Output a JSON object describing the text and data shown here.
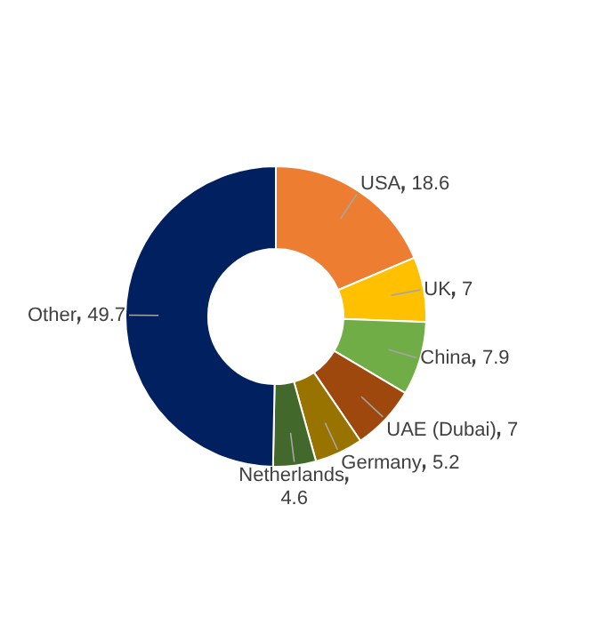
{
  "chart_data": {
    "type": "donut",
    "categories": [
      "USA",
      "UK",
      "China",
      "UAE (Dubai)",
      "Germany",
      "Netherlands",
      "Other"
    ],
    "values": [
      18.6,
      7,
      7.9,
      7,
      5.2,
      4.6,
      49.7
    ],
    "colors": [
      "#ed7d31",
      "#ffc000",
      "#70ad47",
      "#9e480e",
      "#997300",
      "#43682b",
      "#002060"
    ],
    "data_labels": true,
    "legend": false
  }
}
